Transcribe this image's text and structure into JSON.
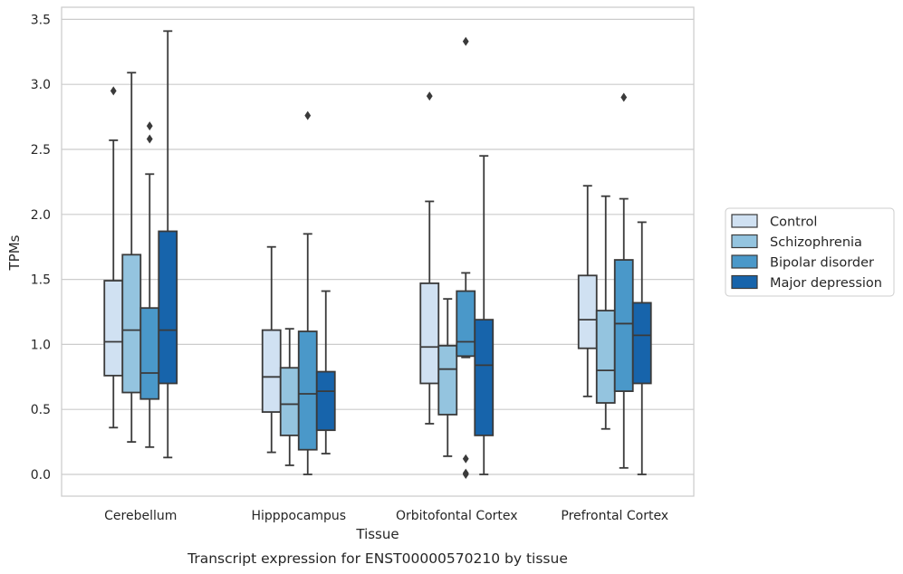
{
  "chart_data": {
    "type": "box",
    "title": "",
    "caption": "Transcript expression for ENST00000570210 by tissue",
    "xlabel": "Tissue",
    "ylabel": "TPMs",
    "ylim": [
      -0.17,
      3.58
    ],
    "yticks": [
      "0.0",
      "0.5",
      "1.0",
      "1.5",
      "2.0",
      "2.5",
      "3.0",
      "3.5"
    ],
    "grid": "horizontal",
    "legend_position": "right",
    "categories": [
      "Cerebellum",
      "Hipppocampus",
      "Orbitofontal Cortex",
      "Prefrontal Cortex"
    ],
    "series": [
      {
        "name": "Control",
        "color": "#d0e1f2",
        "boxes": [
          {
            "whislo": 0.36,
            "q1": 0.76,
            "med": 1.02,
            "q3": 1.49,
            "whishi": 2.57,
            "fliers": [
              2.95
            ]
          },
          {
            "whislo": 0.17,
            "q1": 0.48,
            "med": 0.75,
            "q3": 1.11,
            "whishi": 1.75,
            "fliers": []
          },
          {
            "whislo": 0.39,
            "q1": 0.7,
            "med": 0.98,
            "q3": 1.47,
            "whishi": 2.1,
            "fliers": [
              2.91
            ]
          },
          {
            "whislo": 0.6,
            "q1": 0.97,
            "med": 1.19,
            "q3": 1.53,
            "whishi": 2.22,
            "fliers": []
          }
        ]
      },
      {
        "name": "Schizophrenia",
        "color": "#94c4df",
        "boxes": [
          {
            "whislo": 0.25,
            "q1": 0.63,
            "med": 1.11,
            "q3": 1.69,
            "whishi": 3.09,
            "fliers": []
          },
          {
            "whislo": 0.07,
            "q1": 0.3,
            "med": 0.54,
            "q3": 0.82,
            "whishi": 1.12,
            "fliers": []
          },
          {
            "whislo": 0.14,
            "q1": 0.46,
            "med": 0.81,
            "q3": 0.99,
            "whishi": 1.35,
            "fliers": []
          },
          {
            "whislo": 0.35,
            "q1": 0.55,
            "med": 0.8,
            "q3": 1.26,
            "whishi": 2.14,
            "fliers": []
          }
        ]
      },
      {
        "name": "Bipolar disorder",
        "color": "#4a98c9",
        "boxes": [
          {
            "whislo": 0.21,
            "q1": 0.58,
            "med": 0.78,
            "q3": 1.28,
            "whishi": 2.31,
            "fliers": [
              2.58,
              2.68
            ]
          },
          {
            "whislo": 0.0,
            "q1": 0.19,
            "med": 0.62,
            "q3": 1.1,
            "whishi": 1.85,
            "fliers": [
              2.76
            ]
          },
          {
            "whislo": 0.9,
            "q1": 0.91,
            "med": 1.02,
            "q3": 1.41,
            "whishi": 1.55,
            "fliers": [
              3.33,
              0.12,
              0.01,
              0.0
            ]
          },
          {
            "whislo": 0.05,
            "q1": 0.64,
            "med": 1.16,
            "q3": 1.65,
            "whishi": 2.12,
            "fliers": [
              2.9
            ]
          }
        ]
      },
      {
        "name": "Major depression",
        "color": "#1764ab",
        "boxes": [
          {
            "whislo": 0.13,
            "q1": 0.7,
            "med": 1.11,
            "q3": 1.87,
            "whishi": 3.41,
            "fliers": []
          },
          {
            "whislo": 0.16,
            "q1": 0.34,
            "med": 0.64,
            "q3": 0.79,
            "whishi": 1.41,
            "fliers": []
          },
          {
            "whislo": 0.0,
            "q1": 0.3,
            "med": 0.84,
            "q3": 1.19,
            "whishi": 2.45,
            "fliers": []
          },
          {
            "whislo": 0.0,
            "q1": 0.7,
            "med": 1.07,
            "q3": 1.32,
            "whishi": 1.94,
            "fliers": []
          }
        ]
      }
    ]
  }
}
